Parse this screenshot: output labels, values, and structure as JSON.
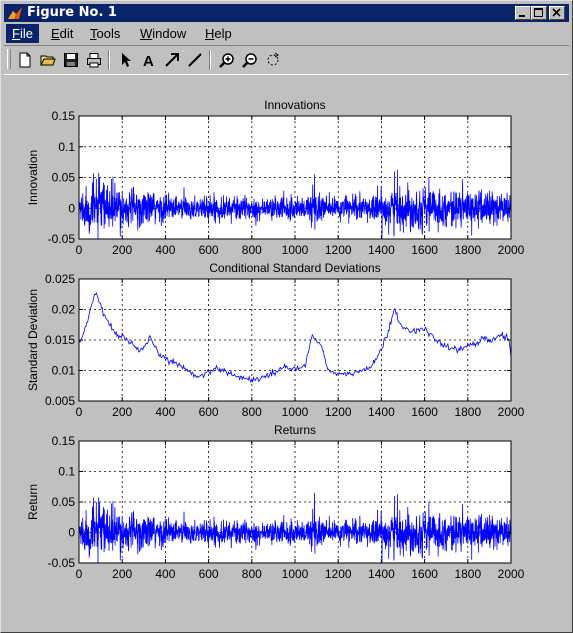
{
  "window": {
    "title": "Figure No. 1",
    "title_icon": "matlab-logo-icon",
    "buttons": [
      "minimize-icon",
      "maximize-icon",
      "close-icon"
    ]
  },
  "menu": [
    {
      "label": "File",
      "underline": "F",
      "rest": "ile",
      "active": true
    },
    {
      "label": "Edit",
      "underline": "E",
      "rest": "dit",
      "active": false
    },
    {
      "label": "Tools",
      "underline": "T",
      "rest": "ools",
      "active": false
    },
    {
      "label": "Window",
      "underline": "W",
      "rest": "indow",
      "active": false
    },
    {
      "label": "Help",
      "underline": "H",
      "rest": "elp",
      "active": false
    }
  ],
  "toolbar": {
    "tools": [
      "new-file-icon",
      "open-folder-icon",
      "save-icon",
      "print-icon",
      "arrow-select-icon",
      "text-insert-icon",
      "arrow-insert-icon",
      "line-insert-icon",
      "zoom-in-icon",
      "zoom-out-icon",
      "rotate-icon"
    ]
  },
  "colors": {
    "accent": "#0a246a",
    "series": "#0000ff",
    "plot_background": "#ffffff",
    "figure_background": "#c0c0c0"
  },
  "chart_data": [
    {
      "type": "line",
      "title": "Innovations",
      "xlabel": "",
      "ylabel": "Innovation",
      "xlim": [
        0,
        2000
      ],
      "ylim": [
        -0.05,
        0.15
      ],
      "xticks": [
        0,
        200,
        400,
        600,
        800,
        1000,
        1200,
        1400,
        1600,
        1800,
        2000
      ],
      "yticks": [
        -0.05,
        0,
        0.05,
        0.1,
        0.15
      ],
      "xtick_labels": [
        "0",
        "200",
        "400",
        "600",
        "800",
        "1000",
        "1200",
        "1400",
        "1600",
        "1800",
        "2000"
      ],
      "ytick_labels": [
        "-0.05",
        "0",
        "0.05",
        "0.1",
        "0.15"
      ],
      "grid": true,
      "series": [
        {
          "kind": "noise",
          "scale_from": "conditional_sd",
          "peaks": [
            [
              80,
              0.048
            ],
            [
              1090,
              0.055
            ],
            [
              1460,
              0.06
            ],
            [
              1620,
              0.05
            ]
          ]
        }
      ]
    },
    {
      "type": "line",
      "title": "Conditional Standard Deviations",
      "xlabel": "",
      "ylabel": "Standard Deviation",
      "xlim": [
        0,
        2000
      ],
      "ylim": [
        0.005,
        0.025
      ],
      "xticks": [
        0,
        200,
        400,
        600,
        800,
        1000,
        1200,
        1400,
        1600,
        1800,
        2000
      ],
      "yticks": [
        0.005,
        0.01,
        0.015,
        0.02,
        0.025
      ],
      "xtick_labels": [
        "0",
        "200",
        "400",
        "600",
        "800",
        "1000",
        "1200",
        "1400",
        "1600",
        "1800",
        "2000"
      ],
      "ytick_labels": [
        "0.005",
        "0.01",
        "0.015",
        "0.02",
        "0.025"
      ],
      "grid": true,
      "series": [
        {
          "kind": "path",
          "x": [
            0,
            30,
            60,
            80,
            100,
            130,
            170,
            200,
            240,
            280,
            310,
            330,
            360,
            400,
            450,
            500,
            550,
            600,
            650,
            700,
            750,
            800,
            850,
            900,
            950,
            1000,
            1050,
            1080,
            1100,
            1130,
            1150,
            1200,
            1250,
            1300,
            1350,
            1400,
            1430,
            1460,
            1480,
            1500,
            1550,
            1600,
            1650,
            1700,
            1750,
            1800,
            1850,
            1880,
            1900,
            1950,
            1990,
            2000
          ],
          "y": [
            0.0145,
            0.017,
            0.021,
            0.0225,
            0.0205,
            0.018,
            0.016,
            0.0155,
            0.0145,
            0.013,
            0.014,
            0.0155,
            0.013,
            0.012,
            0.0112,
            0.01,
            0.009,
            0.0098,
            0.0104,
            0.0095,
            0.0088,
            0.0085,
            0.0088,
            0.0095,
            0.0108,
            0.01,
            0.011,
            0.016,
            0.015,
            0.0135,
            0.0102,
            0.0092,
            0.0095,
            0.0098,
            0.0105,
            0.0135,
            0.016,
            0.0205,
            0.018,
            0.017,
            0.0165,
            0.0168,
            0.015,
            0.0138,
            0.0135,
            0.014,
            0.0145,
            0.0155,
            0.0148,
            0.016,
            0.015,
            0.012
          ]
        }
      ]
    },
    {
      "type": "line",
      "title": "Returns",
      "xlabel": "",
      "ylabel": "Return",
      "xlim": [
        0,
        2000
      ],
      "ylim": [
        -0.05,
        0.15
      ],
      "xticks": [
        0,
        200,
        400,
        600,
        800,
        1000,
        1200,
        1400,
        1600,
        1800,
        2000
      ],
      "yticks": [
        -0.05,
        0,
        0.05,
        0.1,
        0.15
      ],
      "xtick_labels": [
        "0",
        "200",
        "400",
        "600",
        "800",
        "1000",
        "1200",
        "1400",
        "1600",
        "1800",
        "2000"
      ],
      "ytick_labels": [
        "-0.05",
        "0",
        "0.05",
        "0.1",
        "0.15"
      ],
      "grid": true,
      "series": [
        {
          "kind": "noise",
          "scale_from": "conditional_sd",
          "peaks": [
            [
              80,
              0.05
            ],
            [
              1090,
              0.065
            ],
            [
              1460,
              0.06
            ],
            [
              1620,
              0.05
            ]
          ]
        }
      ]
    }
  ]
}
